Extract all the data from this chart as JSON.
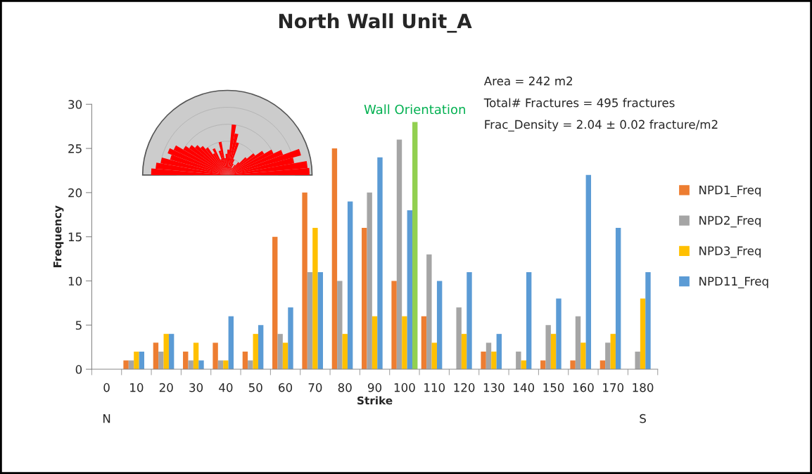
{
  "chart_data": {
    "type": "bar",
    "title": "North Wall Unit_A",
    "xlabel": "Strike",
    "ylabel": "Frequency",
    "categories": [
      "0",
      "10",
      "20",
      "30",
      "40",
      "50",
      "60",
      "70",
      "80",
      "90",
      "100",
      "110",
      "120",
      "130",
      "140",
      "150",
      "160",
      "170",
      "180"
    ],
    "ylim": [
      0,
      30
    ],
    "yticks": [
      0,
      5,
      10,
      15,
      20,
      25,
      30
    ],
    "grid": false,
    "legend": "right",
    "series": [
      {
        "name": "NPD1_Freq",
        "color": "#ed7d31",
        "values": [
          null,
          1,
          3,
          2,
          3,
          2,
          15,
          20,
          25,
          16,
          10,
          6,
          null,
          2,
          null,
          1,
          1,
          1,
          null
        ]
      },
      {
        "name": "NPD2_Freq",
        "color": "#a5a5a5",
        "values": [
          null,
          1,
          2,
          1,
          1,
          1,
          4,
          11,
          10,
          20,
          26,
          13,
          7,
          3,
          2,
          5,
          6,
          3,
          2
        ]
      },
      {
        "name": "NPD3_Freq",
        "color": "#ffc000",
        "values": [
          null,
          2,
          4,
          3,
          1,
          4,
          3,
          16,
          4,
          6,
          6,
          3,
          4,
          2,
          1,
          4,
          3,
          4,
          8
        ]
      },
      {
        "name": "NPD11_Freq",
        "color": "#5b9bd5",
        "values": [
          null,
          2,
          4,
          1,
          6,
          5,
          7,
          11,
          19,
          24,
          18,
          10,
          11,
          4,
          11,
          8,
          22,
          16,
          11
        ]
      },
      {
        "name": "Wall Orientation",
        "color": "#92d050",
        "values": [
          null,
          null,
          null,
          null,
          null,
          null,
          null,
          null,
          null,
          null,
          28,
          null,
          null,
          null,
          null,
          null,
          null,
          null,
          null
        ]
      }
    ],
    "annotations": [
      "N",
      "S",
      "Area = 242 m2",
      "Total# Fractures = 495 fractures",
      "Frac_Density = 2.04 ± 0.02 fracture/m2"
    ]
  }
}
